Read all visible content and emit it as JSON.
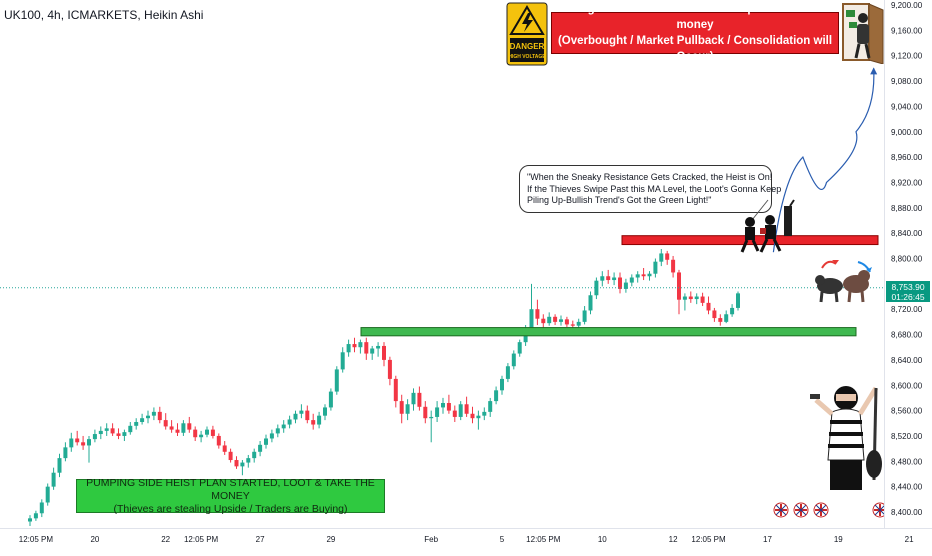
{
  "header": {
    "title": "UK100, 4h, ICMARKETS, Heikin Ashi"
  },
  "annotations": {
    "danger_sign": {
      "line1": "DANGER",
      "line2": "HIGH VOLTAGE"
    },
    "escape_banner": {
      "line1": "Dangerous Level to steal so escape with stolen money",
      "line2": "(Overbought / Market Pullback / Consolidation will Occur)"
    },
    "callout": {
      "line1": "\"When the Sneaky Resistance Gets Cracked, the Heist is On!",
      "line2": "If the Thieves Swipe Past this MA Level, the Loot's Gonna Keep",
      "line3": "Piling Up-Bullish Trend's Got the Green Light!\""
    },
    "bottom_banner": {
      "line1": "PUMPING SIDE HEIST PLAN STARTED, LOOT & TAKE THE MONEY",
      "line2": "(Thieves are stealing Upside / Traders are Buying)"
    }
  },
  "current_price": {
    "price": "8,753.90",
    "countdown": "01:26:45"
  },
  "colors": {
    "up": "#22ab94",
    "down": "#f23645",
    "resistance_zone": "#e8232a",
    "support_zone": "#3fb950",
    "price_line": "#26a69a",
    "projection": "#2a5db0"
  },
  "chart_data": {
    "type": "candlestick",
    "style": "Heikin Ashi",
    "symbol": "UK100",
    "timeframe": "4h",
    "exchange": "ICMARKETS",
    "ylim": [
      8380,
      9210
    ],
    "y_ticks": [
      9200,
      9160,
      9120,
      9080,
      9040,
      9000,
      8960,
      8920,
      8880,
      8840,
      8800,
      8760,
      8720,
      8680,
      8640,
      8600,
      8560,
      8520,
      8480,
      8440,
      8400
    ],
    "y_tick_labels": [
      "9,200.00",
      "9,160.00",
      "9,120.00",
      "9,080.00",
      "9,040.00",
      "9,000.00",
      "8,960.00",
      "8,920.00",
      "8,880.00",
      "8,840.00",
      "8,800.00",
      "8,760.00",
      "8,720.00",
      "8,680.00",
      "8,640.00",
      "8,600.00",
      "8,560.00",
      "8,520.00",
      "8,480.00",
      "8,440.00",
      "8,400.00"
    ],
    "x_ticks": [
      {
        "label": "12:05 PM",
        "index": 1
      },
      {
        "label": "20",
        "index": 11
      },
      {
        "label": "22",
        "index": 23
      },
      {
        "label": "12:05 PM",
        "index": 29
      },
      {
        "label": "27",
        "index": 39
      },
      {
        "label": "29",
        "index": 51
      },
      {
        "label": "Feb",
        "index": 68
      },
      {
        "label": "5",
        "index": 80
      },
      {
        "label": "12:05 PM",
        "index": 87
      },
      {
        "label": "10",
        "index": 97
      },
      {
        "label": "12",
        "index": 109
      },
      {
        "label": "12:05 PM",
        "index": 115
      },
      {
        "label": "17",
        "index": 125
      },
      {
        "label": "19",
        "index": 137
      },
      {
        "label": "21",
        "index": 149
      }
    ],
    "candles": [
      {
        "o": 8385,
        "h": 8395,
        "l": 8378,
        "c": 8390
      },
      {
        "o": 8390,
        "h": 8402,
        "l": 8386,
        "c": 8398
      },
      {
        "o": 8398,
        "h": 8420,
        "l": 8392,
        "c": 8415
      },
      {
        "o": 8415,
        "h": 8445,
        "l": 8410,
        "c": 8440
      },
      {
        "o": 8440,
        "h": 8470,
        "l": 8435,
        "c": 8462
      },
      {
        "o": 8462,
        "h": 8492,
        "l": 8455,
        "c": 8485
      },
      {
        "o": 8485,
        "h": 8510,
        "l": 8480,
        "c": 8502
      },
      {
        "o": 8502,
        "h": 8525,
        "l": 8495,
        "c": 8516
      },
      {
        "o": 8516,
        "h": 8528,
        "l": 8505,
        "c": 8510
      },
      {
        "o": 8510,
        "h": 8520,
        "l": 8498,
        "c": 8505
      },
      {
        "o": 8505,
        "h": 8520,
        "l": 8478,
        "c": 8515
      },
      {
        "o": 8515,
        "h": 8530,
        "l": 8510,
        "c": 8523
      },
      {
        "o": 8523,
        "h": 8535,
        "l": 8515,
        "c": 8528
      },
      {
        "o": 8528,
        "h": 8540,
        "l": 8520,
        "c": 8532
      },
      {
        "o": 8532,
        "h": 8540,
        "l": 8520,
        "c": 8524
      },
      {
        "o": 8524,
        "h": 8532,
        "l": 8515,
        "c": 8520
      },
      {
        "o": 8520,
        "h": 8530,
        "l": 8512,
        "c": 8526
      },
      {
        "o": 8526,
        "h": 8542,
        "l": 8522,
        "c": 8536
      },
      {
        "o": 8536,
        "h": 8548,
        "l": 8530,
        "c": 8542
      },
      {
        "o": 8542,
        "h": 8555,
        "l": 8538,
        "c": 8548
      },
      {
        "o": 8548,
        "h": 8560,
        "l": 8540,
        "c": 8552
      },
      {
        "o": 8552,
        "h": 8565,
        "l": 8545,
        "c": 8558
      },
      {
        "o": 8558,
        "h": 8566,
        "l": 8540,
        "c": 8545
      },
      {
        "o": 8545,
        "h": 8556,
        "l": 8530,
        "c": 8535
      },
      {
        "o": 8535,
        "h": 8545,
        "l": 8525,
        "c": 8530
      },
      {
        "o": 8530,
        "h": 8540,
        "l": 8520,
        "c": 8525
      },
      {
        "o": 8525,
        "h": 8545,
        "l": 8520,
        "c": 8540
      },
      {
        "o": 8540,
        "h": 8550,
        "l": 8525,
        "c": 8530
      },
      {
        "o": 8530,
        "h": 8535,
        "l": 8512,
        "c": 8518
      },
      {
        "o": 8518,
        "h": 8528,
        "l": 8510,
        "c": 8522
      },
      {
        "o": 8522,
        "h": 8535,
        "l": 8518,
        "c": 8530
      },
      {
        "o": 8530,
        "h": 8536,
        "l": 8516,
        "c": 8520
      },
      {
        "o": 8520,
        "h": 8524,
        "l": 8500,
        "c": 8505
      },
      {
        "o": 8505,
        "h": 8512,
        "l": 8490,
        "c": 8495
      },
      {
        "o": 8495,
        "h": 8500,
        "l": 8478,
        "c": 8482
      },
      {
        "o": 8482,
        "h": 8488,
        "l": 8468,
        "c": 8472
      },
      {
        "o": 8472,
        "h": 8482,
        "l": 8458,
        "c": 8478
      },
      {
        "o": 8478,
        "h": 8490,
        "l": 8470,
        "c": 8485
      },
      {
        "o": 8485,
        "h": 8500,
        "l": 8478,
        "c": 8495
      },
      {
        "o": 8495,
        "h": 8512,
        "l": 8488,
        "c": 8506
      },
      {
        "o": 8506,
        "h": 8522,
        "l": 8500,
        "c": 8516
      },
      {
        "o": 8516,
        "h": 8530,
        "l": 8510,
        "c": 8524
      },
      {
        "o": 8524,
        "h": 8538,
        "l": 8518,
        "c": 8532
      },
      {
        "o": 8532,
        "h": 8545,
        "l": 8525,
        "c": 8538
      },
      {
        "o": 8538,
        "h": 8552,
        "l": 8532,
        "c": 8546
      },
      {
        "o": 8546,
        "h": 8560,
        "l": 8540,
        "c": 8555
      },
      {
        "o": 8555,
        "h": 8570,
        "l": 8548,
        "c": 8560
      },
      {
        "o": 8560,
        "h": 8568,
        "l": 8540,
        "c": 8545
      },
      {
        "o": 8545,
        "h": 8555,
        "l": 8530,
        "c": 8538
      },
      {
        "o": 8538,
        "h": 8558,
        "l": 8532,
        "c": 8552
      },
      {
        "o": 8552,
        "h": 8570,
        "l": 8545,
        "c": 8565
      },
      {
        "o": 8565,
        "h": 8595,
        "l": 8560,
        "c": 8590
      },
      {
        "o": 8590,
        "h": 8630,
        "l": 8585,
        "c": 8625
      },
      {
        "o": 8625,
        "h": 8660,
        "l": 8620,
        "c": 8652
      },
      {
        "o": 8652,
        "h": 8672,
        "l": 8645,
        "c": 8665
      },
      {
        "o": 8665,
        "h": 8675,
        "l": 8652,
        "c": 8660
      },
      {
        "o": 8660,
        "h": 8672,
        "l": 8650,
        "c": 8668
      },
      {
        "o": 8668,
        "h": 8675,
        "l": 8640,
        "c": 8650
      },
      {
        "o": 8650,
        "h": 8662,
        "l": 8640,
        "c": 8658
      },
      {
        "o": 8658,
        "h": 8668,
        "l": 8645,
        "c": 8662
      },
      {
        "o": 8662,
        "h": 8668,
        "l": 8630,
        "c": 8640
      },
      {
        "o": 8640,
        "h": 8645,
        "l": 8600,
        "c": 8610
      },
      {
        "o": 8610,
        "h": 8615,
        "l": 8565,
        "c": 8575
      },
      {
        "o": 8575,
        "h": 8585,
        "l": 8540,
        "c": 8555
      },
      {
        "o": 8555,
        "h": 8578,
        "l": 8545,
        "c": 8570
      },
      {
        "o": 8570,
        "h": 8595,
        "l": 8560,
        "c": 8588
      },
      {
        "o": 8588,
        "h": 8598,
        "l": 8560,
        "c": 8566
      },
      {
        "o": 8566,
        "h": 8575,
        "l": 8540,
        "c": 8548
      },
      {
        "o": 8548,
        "h": 8560,
        "l": 8510,
        "c": 8550
      },
      {
        "o": 8550,
        "h": 8575,
        "l": 8542,
        "c": 8565
      },
      {
        "o": 8565,
        "h": 8580,
        "l": 8555,
        "c": 8572
      },
      {
        "o": 8572,
        "h": 8585,
        "l": 8555,
        "c": 8560
      },
      {
        "o": 8560,
        "h": 8568,
        "l": 8542,
        "c": 8550
      },
      {
        "o": 8550,
        "h": 8575,
        "l": 8545,
        "c": 8570
      },
      {
        "o": 8570,
        "h": 8582,
        "l": 8550,
        "c": 8555
      },
      {
        "o": 8555,
        "h": 8566,
        "l": 8540,
        "c": 8548
      },
      {
        "o": 8548,
        "h": 8560,
        "l": 8530,
        "c": 8552
      },
      {
        "o": 8552,
        "h": 8565,
        "l": 8545,
        "c": 8558
      },
      {
        "o": 8558,
        "h": 8580,
        "l": 8550,
        "c": 8575
      },
      {
        "o": 8575,
        "h": 8598,
        "l": 8570,
        "c": 8592
      },
      {
        "o": 8592,
        "h": 8615,
        "l": 8585,
        "c": 8610
      },
      {
        "o": 8610,
        "h": 8635,
        "l": 8605,
        "c": 8630
      },
      {
        "o": 8630,
        "h": 8655,
        "l": 8625,
        "c": 8650
      },
      {
        "o": 8650,
        "h": 8672,
        "l": 8645,
        "c": 8668
      },
      {
        "o": 8668,
        "h": 8695,
        "l": 8662,
        "c": 8690
      },
      {
        "o": 8690,
        "h": 8760,
        "l": 8685,
        "c": 8720
      },
      {
        "o": 8720,
        "h": 8735,
        "l": 8695,
        "c": 8705
      },
      {
        "o": 8705,
        "h": 8712,
        "l": 8690,
        "c": 8698
      },
      {
        "o": 8698,
        "h": 8715,
        "l": 8694,
        "c": 8708
      },
      {
        "o": 8708,
        "h": 8712,
        "l": 8695,
        "c": 8700
      },
      {
        "o": 8700,
        "h": 8710,
        "l": 8694,
        "c": 8704
      },
      {
        "o": 8704,
        "h": 8708,
        "l": 8692,
        "c": 8696
      },
      {
        "o": 8696,
        "h": 8702,
        "l": 8690,
        "c": 8694
      },
      {
        "o": 8694,
        "h": 8705,
        "l": 8690,
        "c": 8700
      },
      {
        "o": 8700,
        "h": 8725,
        "l": 8696,
        "c": 8718
      },
      {
        "o": 8718,
        "h": 8748,
        "l": 8712,
        "c": 8742
      },
      {
        "o": 8742,
        "h": 8770,
        "l": 8736,
        "c": 8765
      },
      {
        "o": 8765,
        "h": 8780,
        "l": 8756,
        "c": 8772
      },
      {
        "o": 8772,
        "h": 8782,
        "l": 8760,
        "c": 8766
      },
      {
        "o": 8766,
        "h": 8778,
        "l": 8758,
        "c": 8770
      },
      {
        "o": 8770,
        "h": 8778,
        "l": 8745,
        "c": 8752
      },
      {
        "o": 8752,
        "h": 8768,
        "l": 8746,
        "c": 8762
      },
      {
        "o": 8762,
        "h": 8775,
        "l": 8756,
        "c": 8770
      },
      {
        "o": 8770,
        "h": 8780,
        "l": 8762,
        "c": 8775
      },
      {
        "o": 8775,
        "h": 8785,
        "l": 8766,
        "c": 8772
      },
      {
        "o": 8772,
        "h": 8780,
        "l": 8765,
        "c": 8776
      },
      {
        "o": 8776,
        "h": 8800,
        "l": 8770,
        "c": 8795
      },
      {
        "o": 8795,
        "h": 8815,
        "l": 8788,
        "c": 8808
      },
      {
        "o": 8808,
        "h": 8812,
        "l": 8790,
        "c": 8798
      },
      {
        "o": 8798,
        "h": 8804,
        "l": 8770,
        "c": 8778
      },
      {
        "o": 8778,
        "h": 8782,
        "l": 8712,
        "c": 8735
      },
      {
        "o": 8735,
        "h": 8745,
        "l": 8718,
        "c": 8740
      },
      {
        "o": 8740,
        "h": 8748,
        "l": 8730,
        "c": 8736
      },
      {
        "o": 8736,
        "h": 8745,
        "l": 8728,
        "c": 8740
      },
      {
        "o": 8740,
        "h": 8746,
        "l": 8725,
        "c": 8730
      },
      {
        "o": 8730,
        "h": 8740,
        "l": 8712,
        "c": 8718
      },
      {
        "o": 8718,
        "h": 8722,
        "l": 8700,
        "c": 8706
      },
      {
        "o": 8706,
        "h": 8712,
        "l": 8694,
        "c": 8700
      },
      {
        "o": 8700,
        "h": 8718,
        "l": 8698,
        "c": 8712
      },
      {
        "o": 8712,
        "h": 8728,
        "l": 8708,
        "c": 8722
      },
      {
        "o": 8722,
        "h": 8748,
        "l": 8718,
        "c": 8745
      }
    ],
    "zones": [
      {
        "name": "resistance",
        "top": 8836,
        "bottom": 8822
      },
      {
        "name": "support",
        "top": 8691,
        "bottom": 8678
      }
    ],
    "current_price": 8753.9,
    "projection": [
      {
        "index": 126,
        "price": 8810
      },
      {
        "index": 131,
        "price": 8960
      },
      {
        "index": 135,
        "price": 8920
      },
      {
        "index": 140,
        "price": 9000
      },
      {
        "index": 143,
        "price": 9100
      }
    ]
  }
}
